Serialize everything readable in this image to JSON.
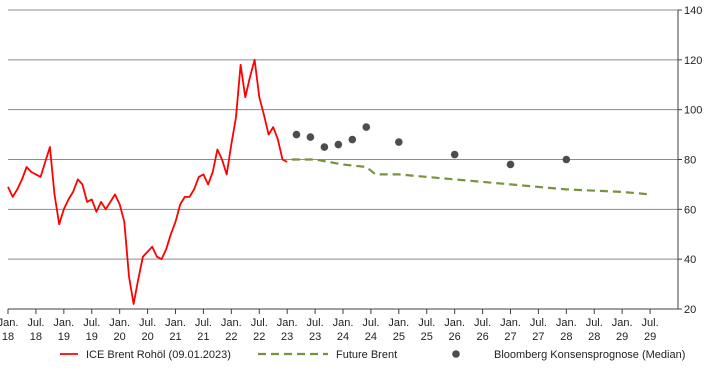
{
  "chart_data": {
    "type": "line",
    "title": "",
    "xlabel": "",
    "ylabel": "",
    "ylim": [
      20,
      140
    ],
    "y_ticks": [
      20,
      40,
      60,
      80,
      100,
      120,
      140
    ],
    "y_axis_side": "right",
    "grid": "horizontal",
    "legend_position": "bottom",
    "x_ticks": [
      {
        "top": "Jan.",
        "bottom": "18"
      },
      {
        "top": "Jul.",
        "bottom": "18"
      },
      {
        "top": "Jan.",
        "bottom": "19"
      },
      {
        "top": "Jul.",
        "bottom": "19"
      },
      {
        "top": "Jan.",
        "bottom": "20"
      },
      {
        "top": "Jul.",
        "bottom": "20"
      },
      {
        "top": "Jan.",
        "bottom": "21"
      },
      {
        "top": "Jul.",
        "bottom": "21"
      },
      {
        "top": "Jan.",
        "bottom": "22"
      },
      {
        "top": "Jul.",
        "bottom": "22"
      },
      {
        "top": "Jan.",
        "bottom": "23"
      },
      {
        "top": "Jul.",
        "bottom": "23"
      },
      {
        "top": "Jan.",
        "bottom": "24"
      },
      {
        "top": "Jul.",
        "bottom": "24"
      },
      {
        "top": "Jan.",
        "bottom": "25"
      },
      {
        "top": "Jul.",
        "bottom": "25"
      },
      {
        "top": "Jan.",
        "bottom": "26"
      },
      {
        "top": "Jul.",
        "bottom": "26"
      },
      {
        "top": "Jan.",
        "bottom": "27"
      },
      {
        "top": "Jul.",
        "bottom": "27"
      },
      {
        "top": "Jan.",
        "bottom": "28"
      },
      {
        "top": "Jul.",
        "bottom": "28"
      },
      {
        "top": "Jan.",
        "bottom": "29"
      },
      {
        "top": "Jul.",
        "bottom": "29"
      }
    ],
    "series": [
      {
        "name": "ICE Brent Rohöl (09.01.2023)",
        "kind": "line",
        "color": "#ff0000",
        "points": [
          [
            "2018-01",
            69
          ],
          [
            "2018-02",
            65
          ],
          [
            "2018-03",
            68
          ],
          [
            "2018-04",
            72
          ],
          [
            "2018-05",
            77
          ],
          [
            "2018-06",
            75
          ],
          [
            "2018-07",
            74
          ],
          [
            "2018-08",
            73
          ],
          [
            "2018-09",
            79
          ],
          [
            "2018-10",
            85
          ],
          [
            "2018-11",
            66
          ],
          [
            "2018-12",
            54
          ],
          [
            "2019-01",
            60
          ],
          [
            "2019-02",
            64
          ],
          [
            "2019-03",
            67
          ],
          [
            "2019-04",
            72
          ],
          [
            "2019-05",
            70
          ],
          [
            "2019-06",
            63
          ],
          [
            "2019-07",
            64
          ],
          [
            "2019-08",
            59
          ],
          [
            "2019-09",
            63
          ],
          [
            "2019-10",
            60
          ],
          [
            "2019-11",
            63
          ],
          [
            "2019-12",
            66
          ],
          [
            "2020-01",
            62
          ],
          [
            "2020-02",
            55
          ],
          [
            "2020-03",
            33
          ],
          [
            "2020-04",
            22
          ],
          [
            "2020-05",
            32
          ],
          [
            "2020-06",
            41
          ],
          [
            "2020-07",
            43
          ],
          [
            "2020-08",
            45
          ],
          [
            "2020-09",
            41
          ],
          [
            "2020-10",
            40
          ],
          [
            "2020-11",
            44
          ],
          [
            "2020-12",
            50
          ],
          [
            "2021-01",
            55
          ],
          [
            "2021-02",
            62
          ],
          [
            "2021-03",
            65
          ],
          [
            "2021-04",
            65
          ],
          [
            "2021-05",
            68
          ],
          [
            "2021-06",
            73
          ],
          [
            "2021-07",
            74
          ],
          [
            "2021-08",
            70
          ],
          [
            "2021-09",
            75
          ],
          [
            "2021-10",
            84
          ],
          [
            "2021-11",
            80
          ],
          [
            "2021-12",
            74
          ],
          [
            "2022-01",
            86
          ],
          [
            "2022-02",
            97
          ],
          [
            "2022-03",
            118
          ],
          [
            "2022-04",
            105
          ],
          [
            "2022-05",
            113
          ],
          [
            "2022-06",
            120
          ],
          [
            "2022-07",
            105
          ],
          [
            "2022-08",
            98
          ],
          [
            "2022-09",
            90
          ],
          [
            "2022-10",
            93
          ],
          [
            "2022-11",
            88
          ],
          [
            "2022-12",
            80
          ],
          [
            "2023-01",
            79
          ]
        ]
      },
      {
        "name": "Future Brent",
        "kind": "dashed",
        "color": "#77933c",
        "points": [
          [
            "2023-02",
            80
          ],
          [
            "2023-07",
            80
          ],
          [
            "2024-01",
            78
          ],
          [
            "2024-06",
            77
          ],
          [
            "2024-08",
            74
          ],
          [
            "2025-01",
            74
          ],
          [
            "2026-01",
            72
          ],
          [
            "2027-01",
            70
          ],
          [
            "2028-01",
            68
          ],
          [
            "2029-01",
            67
          ],
          [
            "2029-07",
            66
          ]
        ]
      },
      {
        "name": "Bloomberg Konsensprognose (Median)",
        "kind": "scatter",
        "color": "#4d4d4d",
        "points": [
          [
            "2023-03",
            90
          ],
          [
            "2023-06",
            89
          ],
          [
            "2023-09",
            85
          ],
          [
            "2023-12",
            86
          ],
          [
            "2024-03",
            88
          ],
          [
            "2024-06",
            93
          ],
          [
            "2025-01",
            87
          ],
          [
            "2026-01",
            82
          ],
          [
            "2027-01",
            78
          ],
          [
            "2028-01",
            80
          ]
        ]
      }
    ]
  }
}
